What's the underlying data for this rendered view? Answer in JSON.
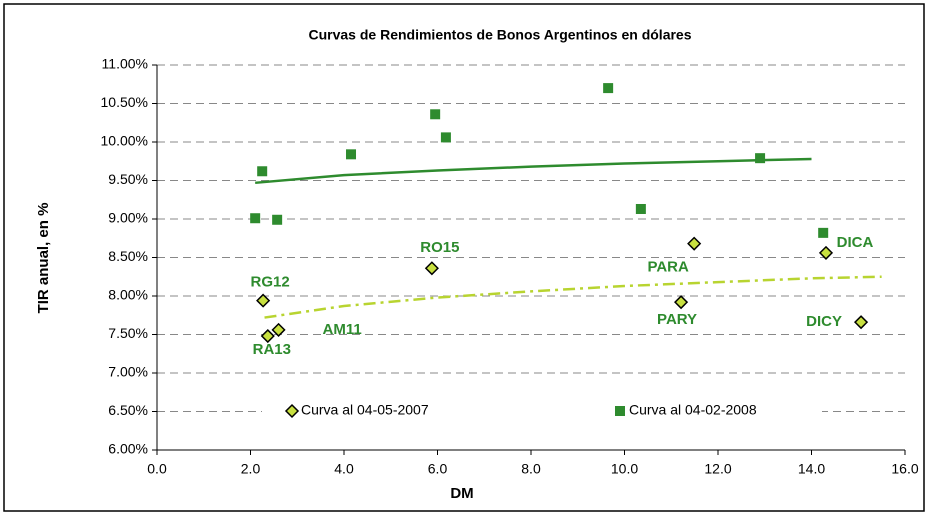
{
  "chart_data": {
    "type": "scatter",
    "title": "Curvas de Rendimientos de Bonos Argentinos en dólares",
    "x_label": "DM",
    "y_label": "TIR anual, en %",
    "xlim": [
      0,
      16
    ],
    "ylim": [
      6,
      11
    ],
    "xticks": [
      {
        "value": 0,
        "label": "0.0"
      },
      {
        "value": 2,
        "label": "2.0"
      },
      {
        "value": 4,
        "label": "4.0"
      },
      {
        "value": 6,
        "label": "6.0"
      },
      {
        "value": 8,
        "label": "8.0"
      },
      {
        "value": 10,
        "label": "10.0"
      },
      {
        "value": 12,
        "label": "12.0"
      },
      {
        "value": 14,
        "label": "14.0"
      },
      {
        "value": 16,
        "label": "16.0"
      }
    ],
    "yticks": [
      {
        "value": 6,
        "label": "6.00%"
      },
      {
        "value": 6.5,
        "label": "6.50%"
      },
      {
        "value": 7,
        "label": "7.00%"
      },
      {
        "value": 7.5,
        "label": "7.50%"
      },
      {
        "value": 8,
        "label": "8.00%"
      },
      {
        "value": 8.5,
        "label": "8.50%"
      },
      {
        "value": 9,
        "label": "9.00%"
      },
      {
        "value": 9.5,
        "label": "9.50%"
      },
      {
        "value": 10,
        "label": "10.00%"
      },
      {
        "value": 10.5,
        "label": "10.50%"
      },
      {
        "value": 11,
        "label": "11.00%"
      }
    ],
    "grid": true,
    "series": [
      {
        "name": "Curva al 04-05-2007",
        "color": "#c8e040",
        "marker": "diamond",
        "x": [
          2.27,
          2.37,
          2.6,
          5.88,
          11.49,
          11.21,
          14.31,
          15.06
        ],
        "values": [
          7.94,
          7.48,
          7.56,
          8.36,
          8.68,
          7.92,
          8.56,
          7.66
        ],
        "labels": [
          "RG12",
          "RA13",
          "AM11",
          "RO15",
          "PARA",
          "PARY",
          "DICA",
          "DICY"
        ],
        "trend": {
          "color": "#b8d430",
          "dashed": true,
          "x": [
            2.3,
            4,
            6,
            8,
            10,
            12,
            14,
            15.5
          ],
          "values": [
            7.72,
            7.87,
            7.98,
            8.06,
            8.13,
            8.18,
            8.23,
            8.25
          ]
        }
      },
      {
        "name": "Curva al 04-02-2008",
        "color": "#2e8b2e",
        "marker": "square",
        "x": [
          2.1,
          2.25,
          2.57,
          4.15,
          5.95,
          6.18,
          9.65,
          10.35,
          12.9,
          14.25
        ],
        "values": [
          9.01,
          9.62,
          8.99,
          9.84,
          10.36,
          10.06,
          10.7,
          9.13,
          9.79,
          8.82
        ],
        "trend": {
          "color": "#2e8b2e",
          "dashed": false,
          "x": [
            2.1,
            4,
            6,
            8,
            10,
            12,
            14
          ],
          "values": [
            9.47,
            9.57,
            9.63,
            9.68,
            9.72,
            9.75,
            9.78
          ]
        }
      }
    ]
  }
}
